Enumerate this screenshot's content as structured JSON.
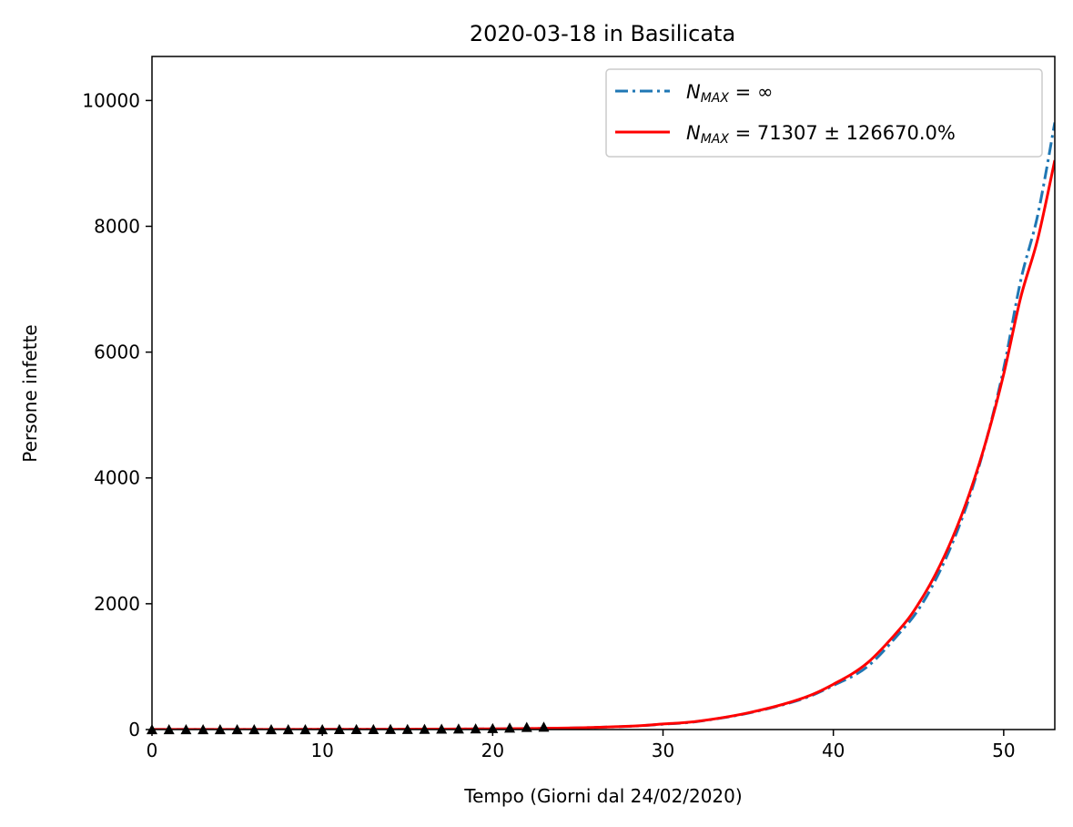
{
  "chart_data": {
    "type": "line",
    "title": "2020-03-18 in Basilicata",
    "xlabel": "Tempo (Giorni dal 24/02/2020)",
    "ylabel": "Persone infette",
    "xlim": [
      0,
      53
    ],
    "ylim": [
      0,
      10700
    ],
    "xticks": [
      0,
      10,
      20,
      30,
      40,
      50
    ],
    "yticks": [
      0,
      2000,
      4000,
      6000,
      8000,
      10000
    ],
    "grid": false,
    "legend_position": "top-right",
    "series": [
      {
        "name": "N_MAX = ∞",
        "legend_main": "N",
        "legend_sub": "MAX",
        "legend_rest": " = ∞",
        "style": "dashdot",
        "color": "#1f77b4",
        "x": [
          0,
          5,
          10,
          15,
          20,
          23,
          25,
          28,
          30,
          32,
          35,
          38,
          40,
          42,
          44,
          45,
          46,
          47,
          48,
          49,
          50,
          51,
          52,
          53
        ],
        "y": [
          1,
          2,
          3,
          5,
          11,
          18,
          27,
          51,
          85,
          127,
          260,
          470,
          700,
          1000,
          1570,
          1910,
          2380,
          2970,
          3700,
          4620,
          5740,
          7140,
          8180,
          9650
        ]
      },
      {
        "name": "N_MAX = 71307 ± 126670.0%",
        "legend_main": "N",
        "legend_sub": "MAX",
        "legend_rest": " = 71307 ± 126670.0%",
        "style": "solid",
        "color": "#ff0000",
        "x": [
          0,
          5,
          10,
          15,
          20,
          23,
          25,
          28,
          30,
          32,
          35,
          38,
          40,
          42,
          44,
          45,
          46,
          47,
          48,
          49,
          50,
          51,
          52,
          53
        ],
        "y": [
          1,
          2,
          3,
          5,
          11,
          18,
          27,
          52,
          88,
          130,
          265,
          480,
          720,
          1060,
          1630,
          2000,
          2470,
          3050,
          3760,
          4620,
          5650,
          6870,
          7800,
          9050
        ]
      }
    ],
    "observed": {
      "marker": "triangle",
      "color": "#000000",
      "x": [
        0,
        1,
        2,
        3,
        4,
        5,
        6,
        7,
        8,
        9,
        10,
        11,
        12,
        13,
        14,
        15,
        16,
        17,
        18,
        19,
        20,
        21,
        22,
        23
      ],
      "y": [
        0,
        0,
        0,
        0,
        0,
        0,
        0,
        0,
        0,
        0,
        0,
        1,
        1,
        1,
        3,
        3,
        5,
        8,
        10,
        12,
        17,
        25,
        36,
        40
      ]
    }
  }
}
